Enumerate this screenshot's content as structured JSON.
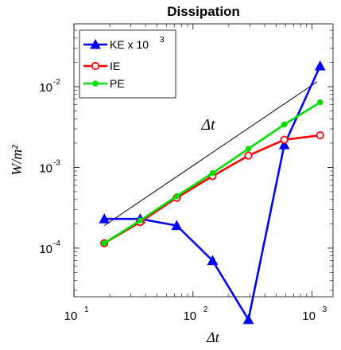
{
  "chart_data": {
    "type": "line",
    "title": "Dissipation",
    "xlabel": "Δt",
    "ylabel": "W/m²",
    "xscale": "log",
    "yscale": "log",
    "xlim": [
      10,
      1500
    ],
    "ylim": [
      2.5e-05,
      0.06
    ],
    "xticks": [
      {
        "value": 10,
        "base": "10",
        "exp": "1"
      },
      {
        "value": 100,
        "base": "10",
        "exp": "2"
      },
      {
        "value": 1000,
        "base": "10",
        "exp": "3"
      }
    ],
    "yticks": [
      {
        "value": 0.0001,
        "base": "10",
        "exp": "-4"
      },
      {
        "value": 0.001,
        "base": "10",
        "exp": "-3"
      },
      {
        "value": 0.01,
        "base": "10",
        "exp": "-2"
      }
    ],
    "legend_position": "top-left",
    "series": [
      {
        "name": "KE x 10",
        "name_exp": "3",
        "color": "#0000ff",
        "marker": "triangle",
        "x": [
          18,
          36,
          73,
          146,
          292,
          584,
          1168
        ],
        "y": [
          0.00023,
          0.00023,
          0.00019,
          7e-05,
          1.3e-05,
          0.0019,
          0.018
        ]
      },
      {
        "name": "IE",
        "color": "#ff0000",
        "marker": "circle",
        "x": [
          18,
          36,
          73,
          146,
          292,
          584,
          1168
        ],
        "y": [
          0.000115,
          0.00021,
          0.00042,
          0.00078,
          0.0014,
          0.0022,
          0.0025
        ]
      },
      {
        "name": "PE",
        "color": "#00dd00",
        "marker": "dot",
        "x": [
          18,
          36,
          73,
          146,
          292,
          584,
          1168
        ],
        "y": [
          0.000115,
          0.00022,
          0.00044,
          0.00085,
          0.0017,
          0.0034,
          0.0064
        ]
      }
    ],
    "reference_line": {
      "label": "Δt",
      "color": "#000000",
      "x": [
        18,
        1100
      ],
      "y": [
        0.00019,
        0.0115
      ]
    }
  }
}
